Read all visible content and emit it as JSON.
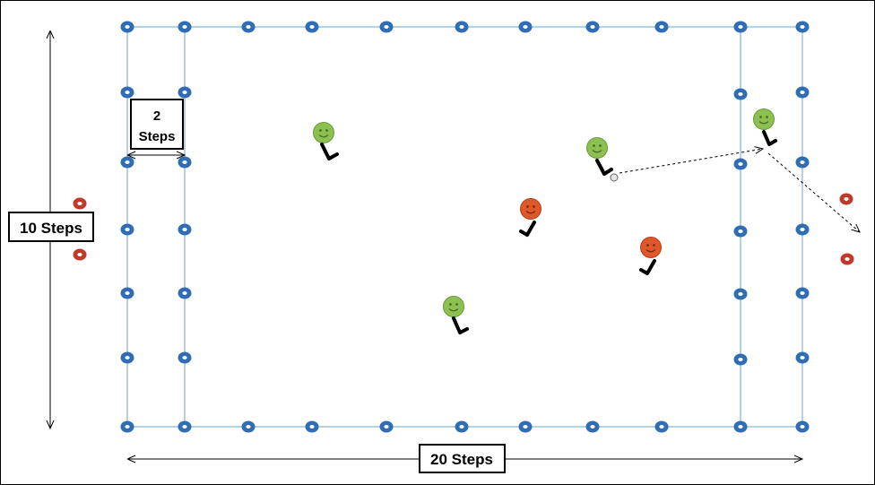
{
  "labels": {
    "width_steps": "20 Steps",
    "height_steps": "10 Steps",
    "zone_steps_number": "2",
    "zone_steps_word": "Steps"
  },
  "colors": {
    "field_line": "#9cc3dd",
    "cone_blue": "#2f6eb5",
    "cone_red": "#c0392b",
    "player_green": "#8cc152",
    "player_red": "#e0572a",
    "arrow": "#000000"
  },
  "icons": {
    "cone": "cone-icon",
    "player": "smiley-player-icon",
    "ball": "ball-icon"
  },
  "players": [
    {
      "team": "green",
      "id": "green-player-1"
    },
    {
      "team": "green",
      "id": "green-player-2"
    },
    {
      "team": "green",
      "id": "green-player-3"
    },
    {
      "team": "green",
      "id": "green-player-4"
    },
    {
      "team": "red",
      "id": "red-player-1"
    },
    {
      "team": "red",
      "id": "red-player-2"
    }
  ]
}
